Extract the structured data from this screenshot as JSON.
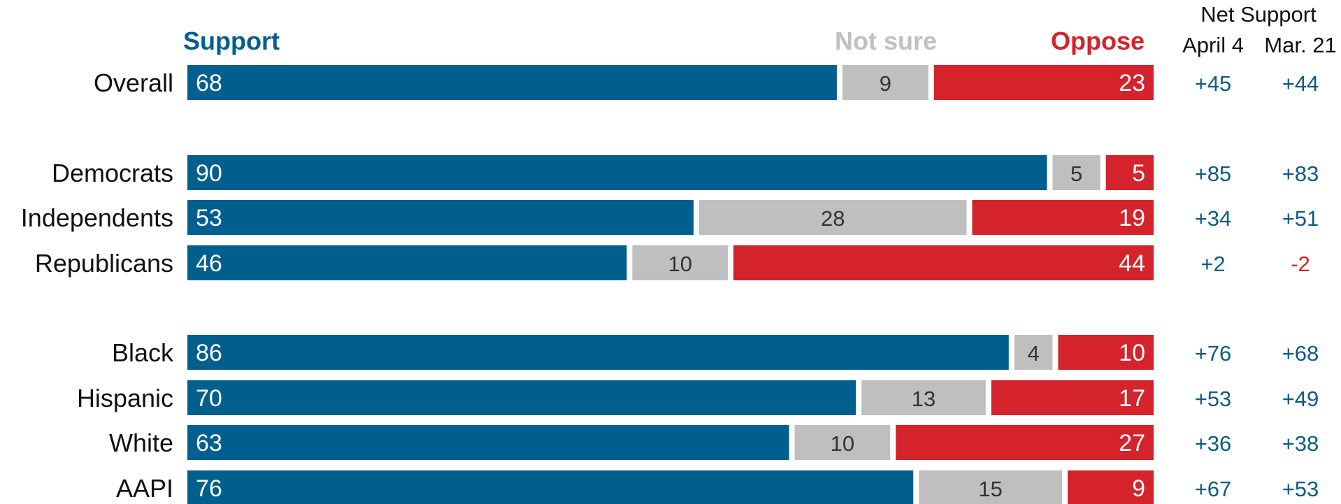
{
  "chart_data": {
    "type": "bar",
    "stacked": true,
    "orientation": "horizontal",
    "categories": [
      "Overall",
      "Democrats",
      "Independents",
      "Republicans",
      "Black",
      "Hispanic",
      "White",
      "AAPI"
    ],
    "groups": [
      [
        "Overall"
      ],
      [
        "Democrats",
        "Independents",
        "Republicans"
      ],
      [
        "Black",
        "Hispanic",
        "White",
        "AAPI"
      ]
    ],
    "series": [
      {
        "name": "Support",
        "values": [
          68,
          90,
          53,
          46,
          86,
          70,
          63,
          76
        ]
      },
      {
        "name": "Not sure",
        "values": [
          9,
          5,
          28,
          10,
          4,
          13,
          10,
          15
        ]
      },
      {
        "name": "Oppose",
        "values": [
          23,
          5,
          19,
          44,
          10,
          17,
          27,
          9
        ]
      }
    ],
    "net_support": {
      "title": "Net Support",
      "columns": [
        "April 4",
        "Mar. 21"
      ],
      "april4": [
        "+45",
        "+85",
        "+34",
        "+2",
        "+76",
        "+53",
        "+36",
        "+67"
      ],
      "mar21": [
        "+44",
        "+83",
        "+51",
        "-2",
        "+68",
        "+49",
        "+38",
        "+53"
      ]
    },
    "xlim": [
      0,
      100
    ],
    "colors": {
      "support": "#005f8e",
      "not_sure": "#bfbfbf",
      "oppose": "#d4232b",
      "net_positive": "#0f5a86",
      "net_negative": "#d4232b",
      "not_sure_header": "#c0c0c0"
    }
  }
}
